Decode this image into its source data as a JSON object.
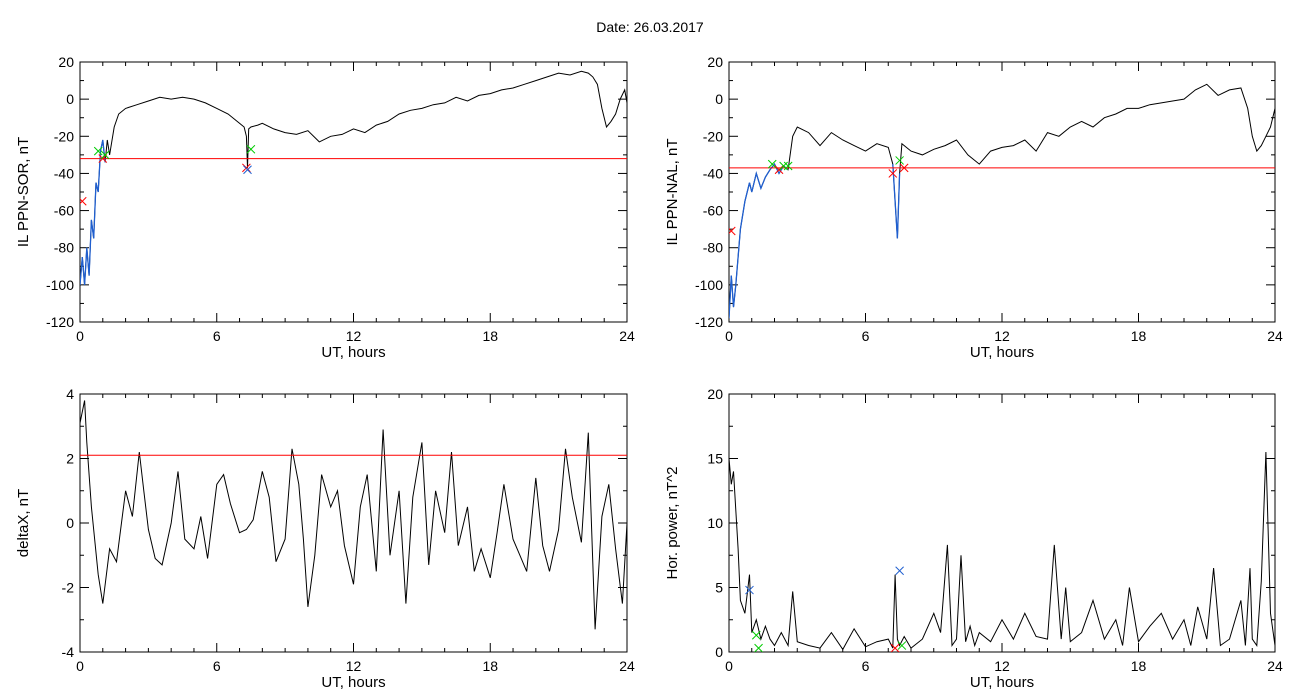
{
  "title": "Date:  26.03.2017",
  "chart_data": [
    {
      "type": "line",
      "ylabel": "IL PPN-SOR, nT",
      "xlabel": "UT, hours",
      "xlim": [
        0,
        24
      ],
      "ylim": [
        -120,
        20
      ],
      "xticks": [
        0,
        6,
        12,
        18,
        24
      ],
      "yticks": [
        -120,
        -100,
        -80,
        -60,
        -40,
        -20,
        0,
        20
      ],
      "threshold": -32,
      "threshold_color": "#ff0000",
      "series_color": "#000000",
      "highlight_color": "#1f5fd0",
      "series": [
        {
          "x": [
            0,
            0.1,
            0.2,
            0.3,
            0.4,
            0.5,
            0.6,
            0.7,
            0.8,
            0.9,
            1.0,
            1.1,
            1.2,
            1.3,
            1.5,
            1.7,
            2.0,
            2.5,
            3.0,
            3.5,
            4.0,
            4.5,
            5.0,
            5.5,
            6.0,
            6.5,
            7.0,
            7.2,
            7.3,
            7.35,
            7.4,
            7.5,
            7.8,
            8.0,
            8.5,
            9.0,
            9.5,
            10.0,
            10.5,
            11.0,
            11.5,
            12.0,
            12.5,
            13.0,
            13.5,
            14.0,
            14.5,
            15.0,
            15.5,
            16.0,
            16.5,
            17.0,
            17.5,
            18.0,
            18.5,
            19.0,
            19.5,
            20.0,
            20.5,
            21.0,
            21.5,
            22.0,
            22.3,
            22.5,
            22.7,
            22.9,
            23.1,
            23.3,
            23.5,
            23.7,
            23.9,
            24.0
          ],
          "y": [
            -100,
            -85,
            -100,
            -80,
            -95,
            -65,
            -75,
            -45,
            -50,
            -28,
            -22,
            -34,
            -22,
            -30,
            -15,
            -8,
            -5,
            -3,
            -1,
            1,
            0,
            1,
            0,
            -2,
            -5,
            -8,
            -13,
            -15,
            -20,
            -37,
            -16,
            -15,
            -14,
            -13,
            -16,
            -18,
            -19,
            -17,
            -23,
            -20,
            -19,
            -16,
            -18,
            -14,
            -12,
            -8,
            -6,
            -5,
            -3,
            -2,
            1,
            -1,
            2,
            3,
            5,
            6,
            8,
            10,
            12,
            14,
            13,
            15,
            14,
            12,
            8,
            -5,
            -15,
            -12,
            -8,
            0,
            5,
            -2
          ]
        },
        {
          "x": [
            0,
            0.1,
            0.2,
            0.3,
            0.4,
            0.5,
            0.6,
            0.7,
            0.8,
            0.9,
            1.0,
            1.1
          ],
          "y": [
            -100,
            -85,
            -100,
            -80,
            -95,
            -65,
            -75,
            -45,
            -50,
            -28,
            -22,
            -34
          ]
        }
      ],
      "markers": [
        {
          "x": 0.1,
          "y": -55,
          "color": "#ff0000"
        },
        {
          "x": 0.8,
          "y": -28,
          "color": "#00cc00"
        },
        {
          "x": 1.0,
          "y": -32,
          "color": "#ff0000"
        },
        {
          "x": 1.1,
          "y": -30,
          "color": "#00cc00"
        },
        {
          "x": 7.3,
          "y": -37,
          "color": "#ff0000"
        },
        {
          "x": 7.35,
          "y": -38,
          "color": "#1f5fd0"
        },
        {
          "x": 7.5,
          "y": -27,
          "color": "#00cc00"
        }
      ]
    },
    {
      "type": "line",
      "ylabel": "IL PPN-NAL, nT",
      "xlabel": "UT, hours",
      "xlim": [
        0,
        24
      ],
      "ylim": [
        -120,
        20
      ],
      "xticks": [
        0,
        6,
        12,
        18,
        24
      ],
      "yticks": [
        -120,
        -100,
        -80,
        -60,
        -40,
        -20,
        0,
        20
      ],
      "threshold": -37,
      "threshold_color": "#ff0000",
      "series_color": "#000000",
      "highlight_color": "#1f5fd0",
      "series": [
        {
          "x": [
            0,
            0.1,
            0.2,
            0.3,
            0.4,
            0.5,
            0.7,
            0.9,
            1.0,
            1.2,
            1.4,
            1.6,
            1.8,
            2.0,
            2.2,
            2.4,
            2.6,
            2.8,
            3.0,
            3.5,
            4.0,
            4.5,
            5.0,
            5.5,
            6.0,
            6.5,
            7.0,
            7.2,
            7.3,
            7.4,
            7.5,
            7.6,
            8.0,
            8.5,
            9.0,
            9.5,
            10.0,
            10.5,
            11.0,
            11.5,
            12.0,
            12.5,
            13.0,
            13.5,
            14.0,
            14.5,
            15.0,
            15.5,
            16.0,
            16.5,
            17.0,
            17.5,
            18.0,
            18.5,
            19.0,
            19.5,
            20.0,
            20.5,
            21.0,
            21.5,
            22.0,
            22.5,
            22.8,
            23.0,
            23.2,
            23.4,
            23.6,
            23.8,
            24.0
          ],
          "y": [
            -118,
            -95,
            -112,
            -100,
            -85,
            -70,
            -55,
            -45,
            -50,
            -40,
            -48,
            -42,
            -38,
            -35,
            -40,
            -36,
            -38,
            -20,
            -15,
            -18,
            -25,
            -18,
            -22,
            -25,
            -28,
            -24,
            -26,
            -35,
            -55,
            -75,
            -40,
            -24,
            -28,
            -30,
            -27,
            -25,
            -22,
            -30,
            -35,
            -28,
            -26,
            -25,
            -22,
            -28,
            -18,
            -20,
            -15,
            -12,
            -15,
            -10,
            -8,
            -5,
            -5,
            -3,
            -2,
            -1,
            0,
            5,
            8,
            2,
            5,
            6,
            -5,
            -20,
            -28,
            -25,
            -20,
            -15,
            -5
          ]
        },
        {
          "x": [
            0,
            0.1,
            0.2,
            0.3,
            0.4,
            0.5,
            0.7,
            0.9,
            1.0,
            1.2,
            1.4,
            1.6,
            1.8,
            2.0,
            2.2,
            2.4,
            2.6
          ],
          "y": [
            -118,
            -95,
            -112,
            -100,
            -85,
            -70,
            -55,
            -45,
            -50,
            -40,
            -48,
            -42,
            -38,
            -35,
            -40,
            -36,
            -38
          ]
        },
        {
          "x": [
            7.2,
            7.3,
            7.4,
            7.5
          ],
          "y": [
            -35,
            -55,
            -75,
            -40
          ]
        }
      ],
      "markers": [
        {
          "x": 0.1,
          "y": -71,
          "color": "#ff0000"
        },
        {
          "x": 1.9,
          "y": -35,
          "color": "#00cc00"
        },
        {
          "x": 2.2,
          "y": -38,
          "color": "#ff0000"
        },
        {
          "x": 2.4,
          "y": -36,
          "color": "#00cc00"
        },
        {
          "x": 2.6,
          "y": -36,
          "color": "#00cc00"
        },
        {
          "x": 7.2,
          "y": -40,
          "color": "#ff0000"
        },
        {
          "x": 7.5,
          "y": -33,
          "color": "#00cc00"
        },
        {
          "x": 7.7,
          "y": -37,
          "color": "#ff0000"
        }
      ]
    },
    {
      "type": "line",
      "ylabel": "deltaX, nT",
      "xlabel": "UT, hours",
      "xlim": [
        0,
        24
      ],
      "ylim": [
        -4,
        4
      ],
      "xticks": [
        0,
        6,
        12,
        18,
        24
      ],
      "yticks": [
        -4,
        -2,
        0,
        2,
        4
      ],
      "threshold": 2.1,
      "threshold_color": "#ff0000",
      "series_color": "#000000",
      "series": [
        {
          "x": [
            0,
            0.2,
            0.3,
            0.5,
            0.8,
            1.0,
            1.3,
            1.6,
            2.0,
            2.3,
            2.6,
            2.8,
            3.0,
            3.3,
            3.6,
            4.0,
            4.3,
            4.6,
            5.0,
            5.3,
            5.6,
            6.0,
            6.3,
            6.6,
            7.0,
            7.3,
            7.6,
            8.0,
            8.3,
            8.6,
            9.0,
            9.3,
            9.6,
            9.8,
            10.0,
            10.3,
            10.6,
            11.0,
            11.3,
            11.6,
            12.0,
            12.3,
            12.6,
            13.0,
            13.3,
            13.6,
            14.0,
            14.3,
            14.6,
            15.0,
            15.3,
            15.6,
            16.0,
            16.3,
            16.6,
            17.0,
            17.3,
            17.6,
            18.0,
            18.3,
            18.6,
            19.0,
            19.3,
            19.6,
            20.0,
            20.3,
            20.6,
            21.0,
            21.3,
            21.6,
            22.0,
            22.3,
            22.6,
            22.9,
            23.2,
            23.5,
            23.8,
            24.0
          ],
          "y": [
            3.1,
            3.8,
            2.5,
            0.5,
            -1.6,
            -2.5,
            -0.8,
            -1.2,
            1.0,
            0.2,
            2.2,
            1.0,
            -0.2,
            -1.1,
            -1.3,
            0.0,
            1.6,
            -0.5,
            -0.8,
            0.2,
            -1.1,
            1.2,
            1.5,
            0.6,
            -0.3,
            -0.2,
            0.1,
            1.6,
            0.8,
            -1.2,
            -0.5,
            2.3,
            1.2,
            -0.5,
            -2.6,
            -1.0,
            1.5,
            0.5,
            1.0,
            -0.7,
            -1.9,
            0.5,
            1.5,
            -1.5,
            2.9,
            -1.0,
            1.0,
            -2.5,
            0.8,
            2.5,
            -1.3,
            1.0,
            -0.3,
            2.2,
            -0.7,
            0.5,
            -1.5,
            -0.8,
            -1.7,
            -0.3,
            1.2,
            -0.5,
            -1.0,
            -1.5,
            1.4,
            -0.7,
            -1.5,
            -0.2,
            2.3,
            0.8,
            -0.6,
            2.8,
            -3.3,
            0.2,
            1.2,
            -0.8,
            -2.5,
            0.0
          ]
        }
      ],
      "markers": []
    },
    {
      "type": "line",
      "ylabel": "Hor. power, nT^2",
      "xlabel": "UT, hours",
      "xlim": [
        0,
        24
      ],
      "ylim": [
        0,
        20
      ],
      "xticks": [
        0,
        6,
        12,
        18,
        24
      ],
      "yticks": [
        0,
        5,
        10,
        15,
        20
      ],
      "threshold": null,
      "series_color": "#000000",
      "series": [
        {
          "x": [
            0,
            0.1,
            0.2,
            0.3,
            0.4,
            0.5,
            0.7,
            0.9,
            1.0,
            1.2,
            1.4,
            1.6,
            1.8,
            2.0,
            2.3,
            2.6,
            2.8,
            3.0,
            3.5,
            4.0,
            4.5,
            5.0,
            5.5,
            6.0,
            6.5,
            7.0,
            7.2,
            7.3,
            7.4,
            7.5,
            7.7,
            8.0,
            8.5,
            9.0,
            9.3,
            9.6,
            9.8,
            10.0,
            10.2,
            10.4,
            10.6,
            10.8,
            11.0,
            11.5,
            12.0,
            12.5,
            13.0,
            13.5,
            14.0,
            14.3,
            14.6,
            14.8,
            15.0,
            15.5,
            16.0,
            16.5,
            17.0,
            17.3,
            17.6,
            18.0,
            18.5,
            19.0,
            19.5,
            20.0,
            20.3,
            20.6,
            21.0,
            21.3,
            21.6,
            22.0,
            22.5,
            22.7,
            22.9,
            23.0,
            23.2,
            23.4,
            23.6,
            23.8,
            24.0
          ],
          "y": [
            15,
            13,
            14,
            11,
            8,
            4,
            3,
            6,
            1.5,
            2.5,
            1.0,
            2.0,
            1.0,
            0.5,
            1.5,
            0.5,
            4.7,
            0.8,
            0.5,
            0.3,
            1.5,
            0.2,
            1.8,
            0.4,
            0.8,
            1.0,
            0.3,
            6.0,
            1.0,
            0.5,
            1.2,
            0.3,
            1.0,
            3.0,
            1.5,
            8.3,
            0.5,
            1.0,
            7.5,
            0.8,
            2.0,
            0.5,
            1.5,
            0.8,
            2.5,
            1.0,
            3.0,
            1.2,
            1.0,
            8.3,
            1.0,
            5.0,
            0.8,
            1.5,
            4.0,
            1.0,
            2.5,
            0.5,
            5.0,
            0.8,
            2.0,
            3.0,
            1.0,
            2.5,
            0.5,
            3.5,
            1.0,
            6.5,
            0.5,
            1.0,
            4.0,
            0.5,
            6.5,
            1.0,
            0.5,
            5.5,
            15.5,
            3.0,
            0.5
          ]
        }
      ],
      "markers": [
        {
          "x": 0.9,
          "y": 4.8,
          "color": "#1f5fd0"
        },
        {
          "x": 1.2,
          "y": 1.3,
          "color": "#00cc00"
        },
        {
          "x": 1.3,
          "y": 0.3,
          "color": "#00cc00"
        },
        {
          "x": 7.3,
          "y": 0.3,
          "color": "#ff0000"
        },
        {
          "x": 7.5,
          "y": 6.3,
          "color": "#1f5fd0"
        },
        {
          "x": 7.6,
          "y": 0.5,
          "color": "#00cc00"
        }
      ]
    }
  ]
}
